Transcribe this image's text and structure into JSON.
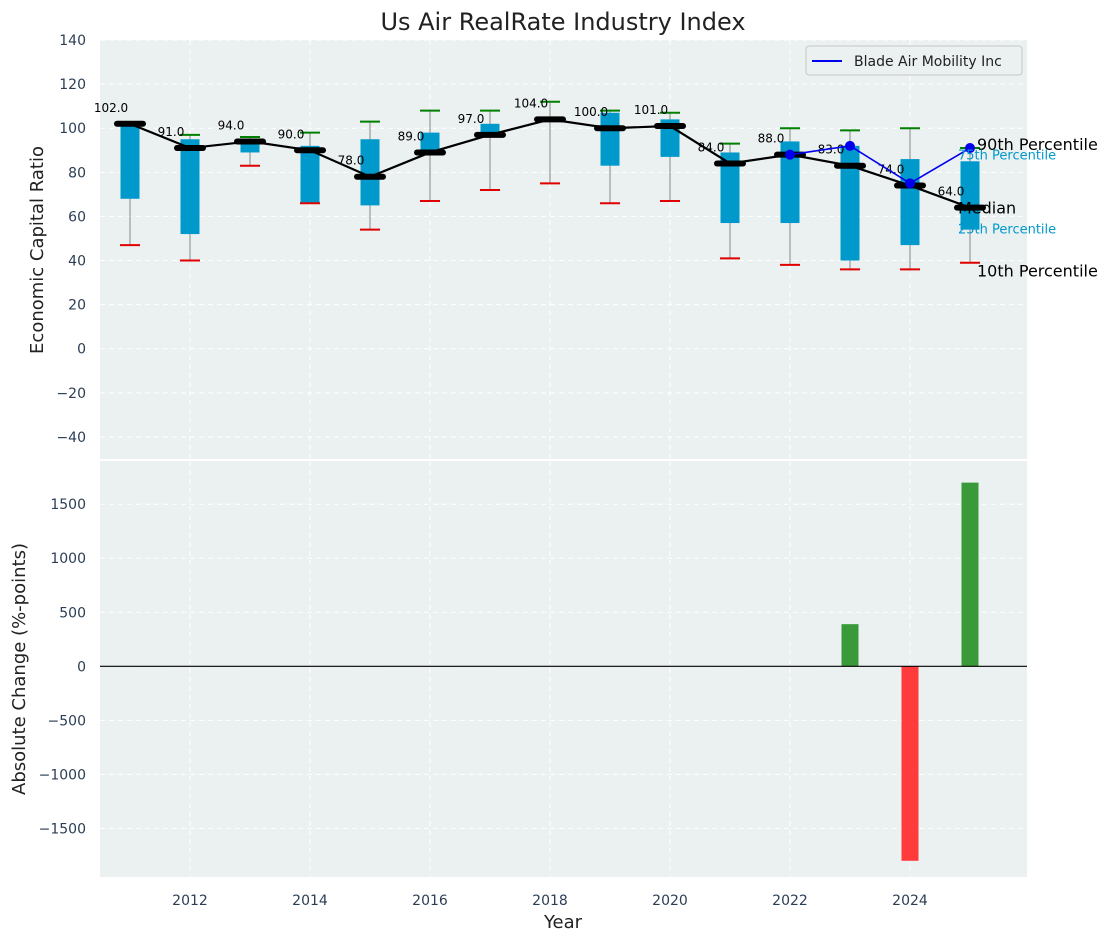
{
  "chart_data": [
    {
      "type": "box",
      "title": "Us Air RealRate Industry Index",
      "ylabel": "Economic Capital Ratio",
      "ylim": [
        -50,
        140
      ],
      "yticks": [
        -40,
        -20,
        0,
        20,
        40,
        60,
        80,
        100,
        120,
        140
      ],
      "ytick_labels": [
        "−40",
        "−20",
        "0",
        "20",
        "40",
        "60",
        "80",
        "100",
        "120",
        "140"
      ],
      "years": [
        2011,
        2012,
        2013,
        2014,
        2015,
        2016,
        2017,
        2018,
        2019,
        2020,
        2021,
        2022,
        2023,
        2024,
        2025
      ],
      "median": [
        102,
        91,
        94,
        90,
        78,
        89,
        97,
        104,
        100,
        101,
        84,
        88,
        83,
        74,
        64
      ],
      "median_labels": [
        "102.0",
        "91.0",
        "94.0",
        "90.0",
        "78.0",
        "89.0",
        "97.0",
        "104.0",
        "100.0",
        "101.0",
        "84.0",
        "88.0",
        "83.0",
        "74.0",
        "64.0"
      ],
      "p10": [
        47,
        40,
        83,
        66,
        54,
        67,
        72,
        75,
        66,
        67,
        41,
        38,
        36,
        36,
        39
      ],
      "p25": [
        68,
        52,
        89,
        66,
        65,
        88,
        97,
        104,
        83,
        87,
        57,
        57,
        40,
        47,
        54
      ],
      "p75": [
        102,
        95,
        95,
        92,
        95,
        98,
        102,
        104,
        107,
        104,
        89,
        94,
        92,
        86,
        85
      ],
      "p90": [
        102,
        97,
        96,
        98,
        103,
        108,
        108,
        112,
        108,
        107,
        93,
        100,
        99,
        100,
        91
      ],
      "company": {
        "name": "Blade Air Mobility Inc",
        "years": [
          2022,
          2023,
          2024,
          2025
        ],
        "values": [
          88,
          92,
          75,
          91
        ]
      },
      "annotations": {
        "p90": "90th Percentile",
        "p75": "75th Percentile",
        "median": "Median",
        "p25": "25th Percentile",
        "p10": "10th Percentile"
      },
      "colors": {
        "box": "#0099cc",
        "median": "#000000",
        "p90_cap": "#008000",
        "p10_cap": "#e00000",
        "company": "#0000ee",
        "panel_bg": "#ebf0f0"
      }
    },
    {
      "type": "bar",
      "ylabel": "Absolute Change (%-points)",
      "xlabel": "Year",
      "ylim": [
        -1950,
        1900
      ],
      "yticks": [
        -1500,
        -1000,
        -500,
        0,
        500,
        1000,
        1500
      ],
      "ytick_labels": [
        "−1500",
        "−1000",
        "−500",
        "0",
        "500",
        "1000",
        "1500"
      ],
      "xticks": [
        2012,
        2014,
        2016,
        2018,
        2020,
        2022,
        2024
      ],
      "xtick_labels": [
        "2012",
        "2014",
        "2016",
        "2018",
        "2020",
        "2022",
        "2024"
      ],
      "x": [
        2023,
        2024,
        2025
      ],
      "values": [
        390,
        -1800,
        1700
      ],
      "colors": {
        "positive": "#3a9a3a",
        "negative": "#ff3b3b"
      }
    }
  ]
}
